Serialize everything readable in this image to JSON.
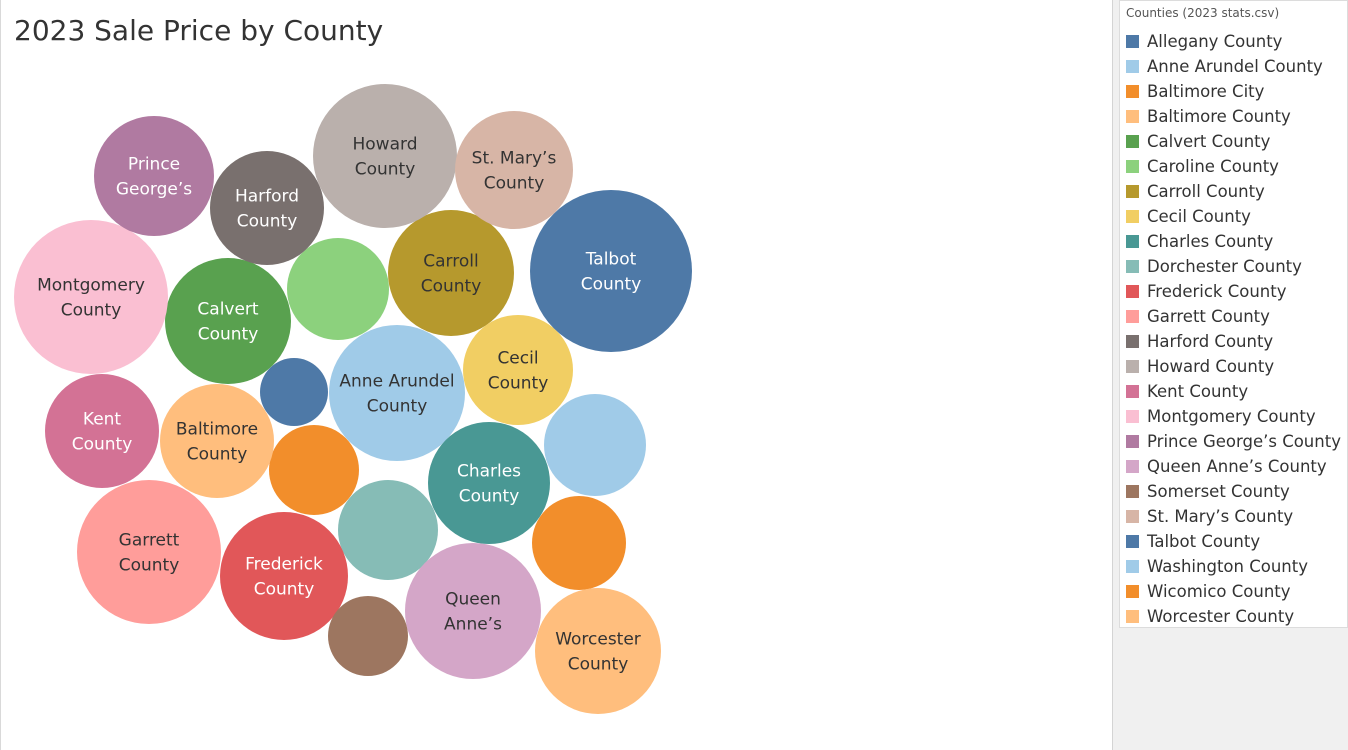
{
  "title": "2023 Sale Price by County",
  "legend": {
    "title": "Counties (2023 stats.csv)",
    "items": [
      {
        "label": "Allegany County",
        "color": "#4e79a7"
      },
      {
        "label": "Anne Arundel County",
        "color": "#a0cbe8"
      },
      {
        "label": "Baltimore City",
        "color": "#f28e2b"
      },
      {
        "label": "Baltimore County",
        "color": "#ffbe7d"
      },
      {
        "label": "Calvert County",
        "color": "#59a14f"
      },
      {
        "label": "Caroline County",
        "color": "#8cd17d"
      },
      {
        "label": "Carroll County",
        "color": "#b6992d"
      },
      {
        "label": "Cecil County",
        "color": "#f1ce63"
      },
      {
        "label": "Charles County",
        "color": "#499894"
      },
      {
        "label": "Dorchester County",
        "color": "#86bcb6"
      },
      {
        "label": "Frederick County",
        "color": "#e15759"
      },
      {
        "label": "Garrett County",
        "color": "#ff9d9a"
      },
      {
        "label": "Harford County",
        "color": "#79706e"
      },
      {
        "label": "Howard County",
        "color": "#bab0ac"
      },
      {
        "label": "Kent County",
        "color": "#d37295"
      },
      {
        "label": "Montgomery County",
        "color": "#fabfd2"
      },
      {
        "label": "Prince George’s County",
        "color": "#b07aa1"
      },
      {
        "label": "Queen Anne’s County",
        "color": "#d4a6c8"
      },
      {
        "label": "Somerset County",
        "color": "#9d7660"
      },
      {
        "label": "St. Mary’s County",
        "color": "#d7b5a6"
      },
      {
        "label": "Talbot County",
        "color": "#4e79a7"
      },
      {
        "label": "Washington County",
        "color": "#a0cbe8"
      },
      {
        "label": "Wicomico County",
        "color": "#f28e2b"
      },
      {
        "label": "Worcester County",
        "color": "#ffbe7d"
      }
    ]
  },
  "chart_data": {
    "type": "bubble",
    "title": "2023 Sale Price by County",
    "color_legend_title": "Counties (2023 stats.csv)",
    "size_measure": "2023 Sale Price",
    "series": [
      {
        "name": "Allegany County",
        "label": "",
        "color": "#4e79a7"
      },
      {
        "name": "Anne Arundel County",
        "label": "Anne Arundel County",
        "color": "#a0cbe8"
      },
      {
        "name": "Baltimore City",
        "label": "",
        "color": "#f28e2b"
      },
      {
        "name": "Baltimore County",
        "label": "Baltimore County",
        "color": "#ffbe7d"
      },
      {
        "name": "Calvert County",
        "label": "Calvert County",
        "color": "#59a14f"
      },
      {
        "name": "Caroline County",
        "label": "",
        "color": "#8cd17d"
      },
      {
        "name": "Carroll County",
        "label": "Carroll County",
        "color": "#b6992d"
      },
      {
        "name": "Cecil County",
        "label": "Cecil County",
        "color": "#f1ce63"
      },
      {
        "name": "Charles County",
        "label": "Charles County",
        "color": "#499894"
      },
      {
        "name": "Dorchester County",
        "label": "",
        "color": "#86bcb6"
      },
      {
        "name": "Frederick County",
        "label": "Frederick County",
        "color": "#e15759"
      },
      {
        "name": "Garrett County",
        "label": "Garrett County",
        "color": "#ff9d9a"
      },
      {
        "name": "Harford County",
        "label": "Harford County",
        "color": "#79706e"
      },
      {
        "name": "Howard County",
        "label": "Howard County",
        "color": "#bab0ac"
      },
      {
        "name": "Kent County",
        "label": "Kent County",
        "color": "#d37295"
      },
      {
        "name": "Montgomery County",
        "label": "Montgomery County",
        "color": "#fabfd2"
      },
      {
        "name": "Prince George’s County",
        "label": "Prince George’s",
        "color": "#b07aa1"
      },
      {
        "name": "Queen Anne’s County",
        "label": "Queen Anne’s",
        "color": "#d4a6c8"
      },
      {
        "name": "Somerset County",
        "label": "",
        "color": "#9d7660"
      },
      {
        "name": "St. Mary’s County",
        "label": "St. Mary’s County",
        "color": "#d7b5a6"
      },
      {
        "name": "Talbot County",
        "label": "Talbot County",
        "color": "#4e79a7"
      },
      {
        "name": "Washington County",
        "label": "",
        "color": "#a0cbe8"
      },
      {
        "name": "Wicomico County",
        "label": "",
        "color": "#f28e2b"
      },
      {
        "name": "Worcester County",
        "label": "Worcester County",
        "color": "#ffbe7d"
      }
    ]
  }
}
